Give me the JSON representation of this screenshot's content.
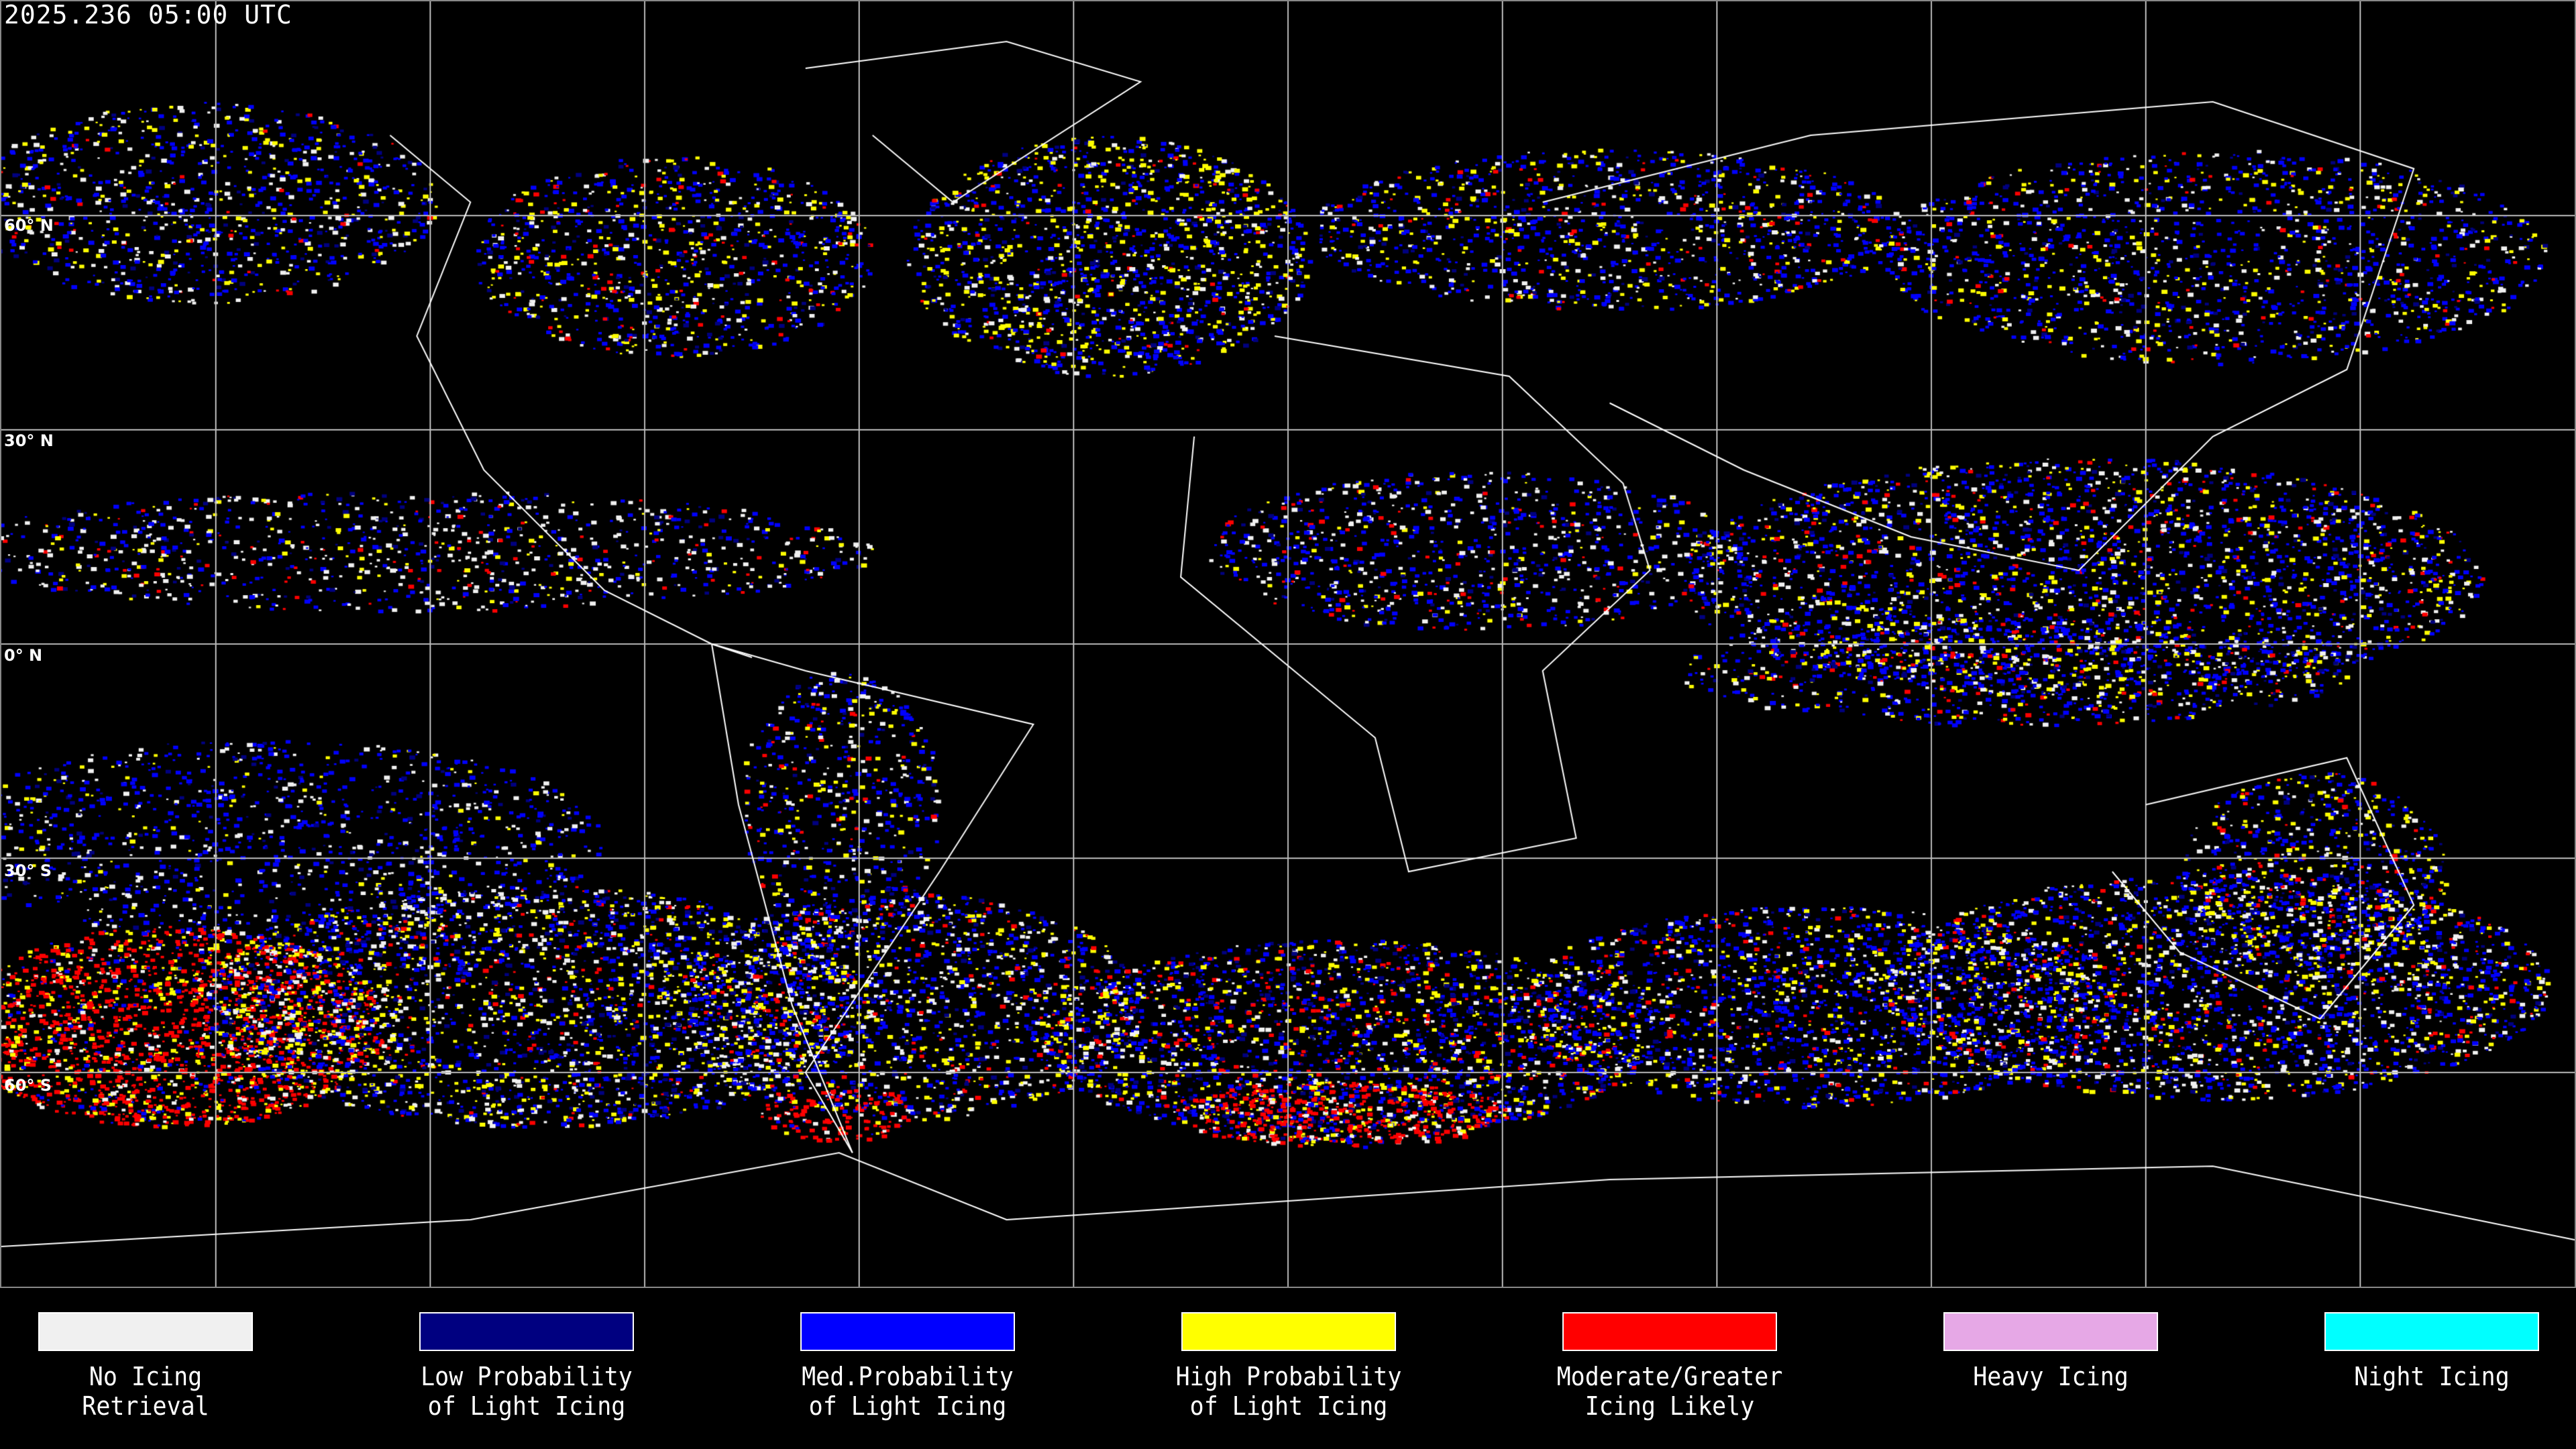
{
  "title": "2025.236 05:00 UTC",
  "lat_labels": [
    "60° N",
    "30° N",
    "0° N",
    "30° S",
    "60° S"
  ],
  "legend": [
    {
      "line1": "No Icing",
      "line2": "Retrieval",
      "color": "#f0f0f0"
    },
    {
      "line1": "Low Probability",
      "line2": "of Light Icing",
      "color": "#000080"
    },
    {
      "line1": "Med.Probability",
      "line2": "of Light Icing",
      "color": "#0000ff"
    },
    {
      "line1": "High Probability",
      "line2": "of Light Icing",
      "color": "#ffff00"
    },
    {
      "line1": "Moderate/Greater",
      "line2": "Icing Likely",
      "color": "#ff0000"
    },
    {
      "line1": "Heavy Icing",
      "line2": "",
      "color": "#e6a8e6"
    },
    {
      "line1": "Night Icing",
      "line2": "",
      "color": "#00ffff"
    }
  ],
  "colors": {
    "background": "#000000",
    "grid": "#bbbbbb",
    "coastline": "#ffffff"
  }
}
